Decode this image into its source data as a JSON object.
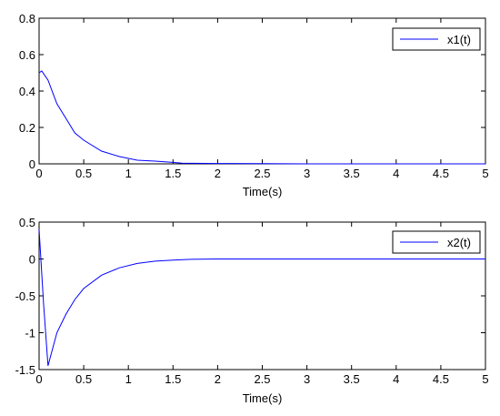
{
  "chart_data": [
    {
      "type": "line",
      "xlabel": "Time(s)",
      "ylabel": "",
      "xlim": [
        0,
        5
      ],
      "ylim": [
        0,
        0.8
      ],
      "xticks": [
        "0",
        "0.5",
        "1",
        "1.5",
        "2",
        "2.5",
        "3",
        "3.5",
        "4",
        "4.5",
        "5"
      ],
      "yticks": [
        "0",
        "0.2",
        "0.4",
        "0.6",
        "0.8"
      ],
      "grid": false,
      "legend": "top-right",
      "series": [
        {
          "name": "x1(t)",
          "color": "#0000ff",
          "x": [
            0,
            0.03,
            0.1,
            0.2,
            0.3,
            0.4,
            0.5,
            0.7,
            0.9,
            1.1,
            1.3,
            1.5,
            1.6,
            2,
            2.5,
            3,
            3.5,
            4,
            4.5,
            5
          ],
          "y": [
            0.5,
            0.51,
            0.46,
            0.33,
            0.25,
            0.17,
            0.13,
            0.07,
            0.04,
            0.02,
            0.015,
            0.008,
            0.004,
            0.002,
            0.001,
            0.0,
            0.0,
            0.0,
            0.0,
            0.0
          ]
        }
      ]
    },
    {
      "type": "line",
      "xlabel": "Time(s)",
      "ylabel": "",
      "xlim": [
        0,
        5
      ],
      "ylim": [
        -1.5,
        0.5
      ],
      "xticks": [
        "0",
        "0.5",
        "1",
        "1.5",
        "2",
        "2.5",
        "3",
        "3.5",
        "4",
        "4.5",
        "5"
      ],
      "yticks": [
        "-1.5",
        "-1",
        "-0.5",
        "0",
        "0.5"
      ],
      "grid": false,
      "legend": "top-right",
      "series": [
        {
          "name": "x2(t)",
          "color": "#0000ff",
          "x": [
            0,
            0.05,
            0.1,
            0.2,
            0.3,
            0.4,
            0.5,
            0.7,
            0.9,
            1.1,
            1.3,
            1.5,
            1.7,
            2,
            2.5,
            3,
            3.5,
            4,
            4.5,
            5
          ],
          "y": [
            0.4,
            -0.6,
            -1.45,
            -1.0,
            -0.75,
            -0.55,
            -0.4,
            -0.22,
            -0.12,
            -0.06,
            -0.03,
            -0.015,
            -0.005,
            0.0,
            0.0,
            0.0,
            0.0,
            0.0,
            0.0,
            0.0
          ]
        }
      ]
    }
  ]
}
